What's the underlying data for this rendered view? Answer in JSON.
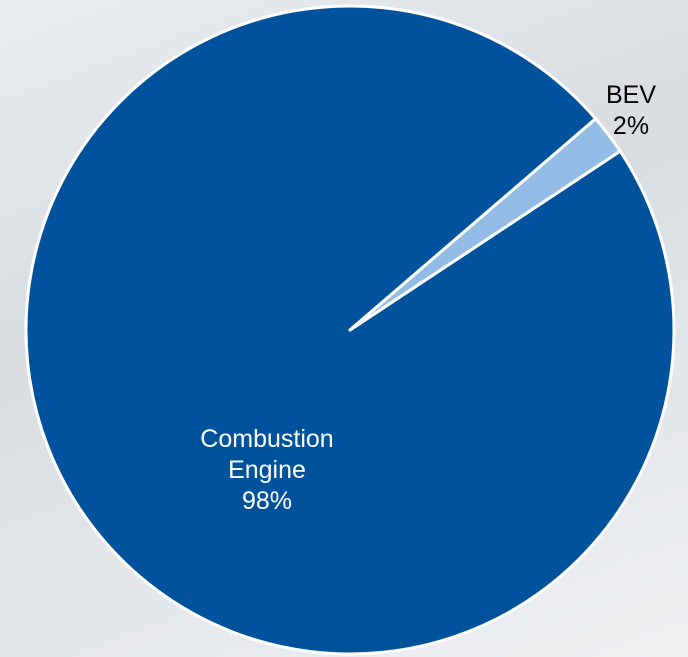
{
  "chart_data": {
    "type": "pie",
    "categories": [
      "Combustion Engine",
      "BEV"
    ],
    "values": [
      98,
      2
    ],
    "value_labels": [
      "98%",
      "2%"
    ],
    "colors": [
      "#00529c",
      "#93bde6"
    ]
  }
}
